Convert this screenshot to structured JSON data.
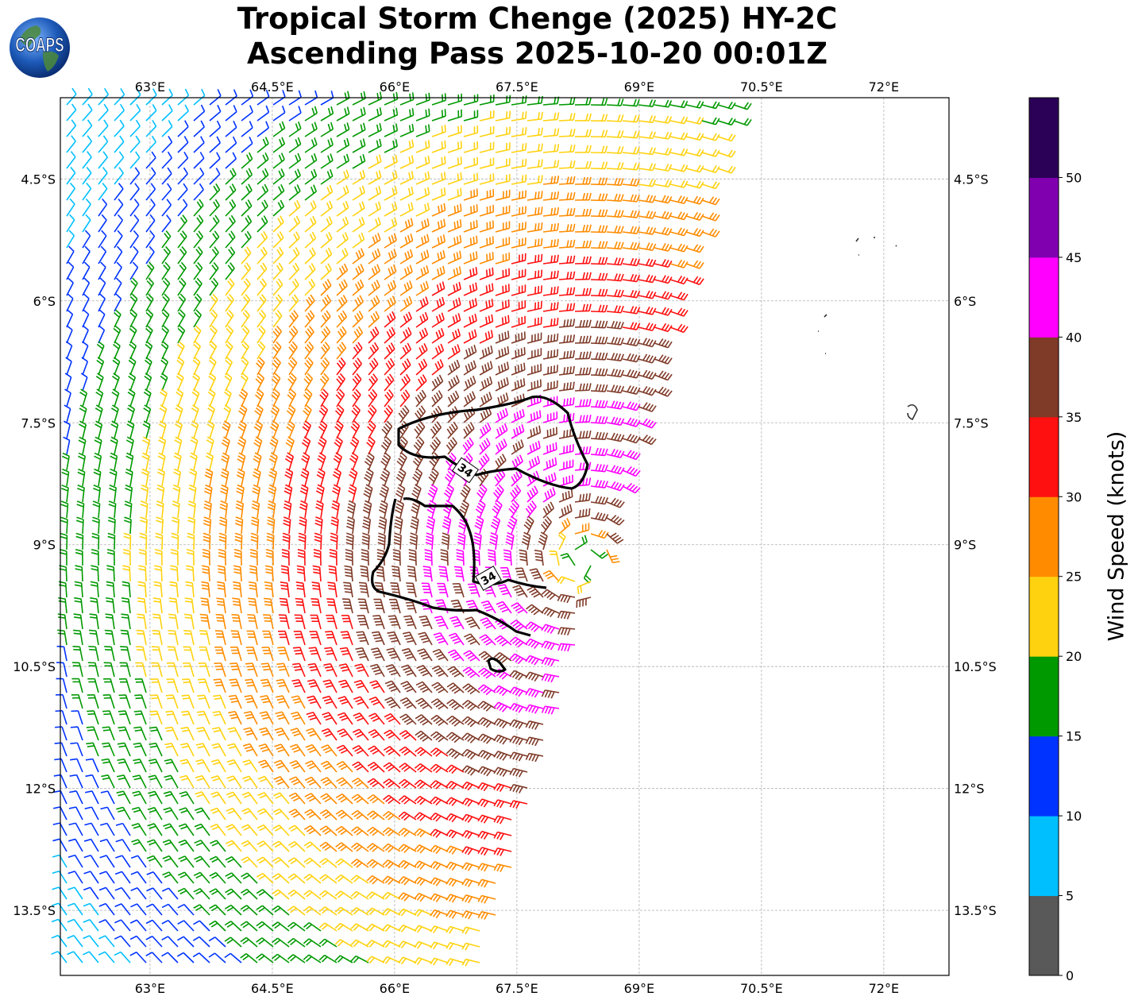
{
  "header": {
    "title_line1": "Tropical Storm Chenge (2025) HY-2C",
    "title_line2": "Ascending Pass 2025-10-20 00:01Z",
    "logo_text": "COAPS"
  },
  "map": {
    "lon_ticks": [
      "63°E",
      "64.5°E",
      "66°E",
      "67.5°E",
      "69°E",
      "70.5°E",
      "72°E"
    ],
    "lat_ticks": [
      "4.5°S",
      "6°S",
      "7.5°S",
      "9°S",
      "10.5°S",
      "12°S",
      "13.5°S"
    ],
    "lon_range": [
      61.9,
      72.8
    ],
    "lat_range": [
      -14.3,
      -3.5
    ],
    "grid": true,
    "contour_label": "34",
    "contour_level_knots": 34
  },
  "colorbar": {
    "label": "Wind Speed (knots)",
    "ticks": [
      "0",
      "5",
      "10",
      "15",
      "20",
      "25",
      "30",
      "35",
      "40",
      "45",
      "50"
    ],
    "colors": [
      "#595959",
      "#00bfff",
      "#0033ff",
      "#009900",
      "#ffd20f",
      "#ff8c00",
      "#ff1010",
      "#7f3a28",
      "#ff00ff",
      "#8000b0",
      "#2b0057"
    ]
  },
  "chart_data": {
    "type": "wind-barb map",
    "storm": "Tropical Storm Chenge (2025)",
    "instrument": "HY-2C",
    "pass": "Ascending",
    "time": "2025-10-20 00:01Z",
    "center_lon": 68.3,
    "center_lat": -9.2,
    "swath_speed_ranges_knots": [
      {
        "region": "west edge",
        "speed_range": [
          5,
          10
        ]
      },
      {
        "region": "northwest",
        "speed_range": [
          10,
          20
        ]
      },
      {
        "region": "outer ring",
        "speed_range": [
          20,
          30
        ]
      },
      {
        "region": "inner ring",
        "speed_range": [
          30,
          35
        ]
      },
      {
        "region": "core",
        "speed_range": [
          35,
          40
        ]
      },
      {
        "region": "small patch north of core",
        "speed_range": [
          40,
          45
        ]
      }
    ]
  }
}
